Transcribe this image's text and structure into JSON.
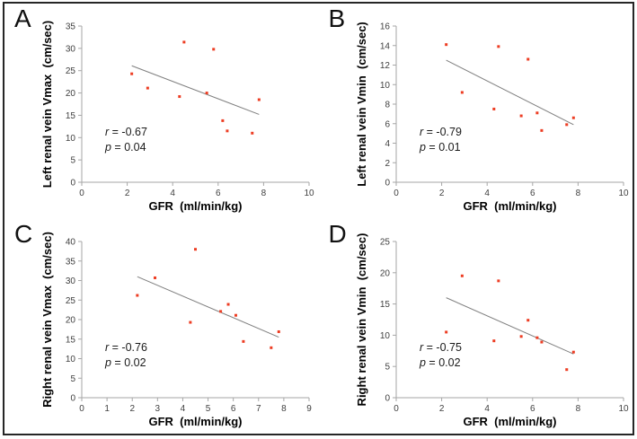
{
  "figure": {
    "background": "#ffffff",
    "border_color": "#262626",
    "colors": {
      "marker": "#ed3d23",
      "axis": "#a6a6a6",
      "trend": "#7f7f7f",
      "tick_text": "#404040",
      "title_text": "#000000"
    }
  },
  "chart_data": [
    {
      "type": "scatter",
      "panel": "A",
      "xlabel": "GFR  (ml/min/kg)",
      "ylabel": "Left renal vein Vmax  (cm/sec)",
      "xlim": [
        0,
        10
      ],
      "ylim": [
        0,
        35
      ],
      "xticks": [
        0,
        2,
        4,
        6,
        8,
        10
      ],
      "yticks": [
        0,
        5,
        10,
        15,
        20,
        25,
        30,
        35
      ],
      "points": [
        [
          2.2,
          24.3
        ],
        [
          2.9,
          21.1
        ],
        [
          4.3,
          19.2
        ],
        [
          4.5,
          31.4
        ],
        [
          5.5,
          20.0
        ],
        [
          5.8,
          29.8
        ],
        [
          6.2,
          13.8
        ],
        [
          6.4,
          11.5
        ],
        [
          7.5,
          11.0
        ],
        [
          7.8,
          18.5
        ]
      ],
      "trendline": {
        "x1": 2.2,
        "y1": 26.1,
        "x2": 7.8,
        "y2": 15.2
      },
      "stats": {
        "r": "-0.67",
        "p": "0.04"
      },
      "grid": false,
      "legend": false
    },
    {
      "type": "scatter",
      "panel": "B",
      "xlabel": "GFR  (ml/min/kg)",
      "ylabel": "Left renal vein Vmin  (cm/sec)",
      "xlim": [
        0,
        10
      ],
      "ylim": [
        0,
        16
      ],
      "xticks": [
        0,
        2,
        4,
        6,
        8,
        10
      ],
      "yticks": [
        0,
        2,
        4,
        6,
        8,
        10,
        12,
        14,
        16
      ],
      "points": [
        [
          2.2,
          14.1
        ],
        [
          2.9,
          9.2
        ],
        [
          4.3,
          7.5
        ],
        [
          4.5,
          13.9
        ],
        [
          5.5,
          6.8
        ],
        [
          5.8,
          12.6
        ],
        [
          6.2,
          7.1
        ],
        [
          6.4,
          5.3
        ],
        [
          7.5,
          5.9
        ],
        [
          7.8,
          6.6
        ]
      ],
      "trendline": {
        "x1": 2.2,
        "y1": 12.5,
        "x2": 7.8,
        "y2": 5.9
      },
      "stats": {
        "r": "-0.79",
        "p": "0.01"
      },
      "grid": false,
      "legend": false
    },
    {
      "type": "scatter",
      "panel": "C",
      "xlabel": "GFR  (ml/min/kg)",
      "ylabel": "Right renal vein Vmax  (cm/sec)",
      "xlim": [
        0,
        9
      ],
      "ylim": [
        0,
        40
      ],
      "xticks": [
        0,
        1,
        2,
        3,
        4,
        5,
        6,
        7,
        8,
        9
      ],
      "yticks": [
        0,
        5,
        10,
        15,
        20,
        25,
        30,
        35,
        40
      ],
      "points": [
        [
          2.2,
          26.2
        ],
        [
          2.9,
          30.7
        ],
        [
          4.3,
          19.3
        ],
        [
          4.5,
          38.0
        ],
        [
          5.5,
          22.1
        ],
        [
          5.8,
          23.9
        ],
        [
          6.1,
          21.1
        ],
        [
          6.4,
          14.4
        ],
        [
          7.5,
          12.8
        ],
        [
          7.8,
          16.9
        ]
      ],
      "trendline": {
        "x1": 2.2,
        "y1": 31.0,
        "x2": 7.8,
        "y2": 15.5
      },
      "stats": {
        "r": "-0.76",
        "p": "0.02"
      },
      "grid": false,
      "legend": false
    },
    {
      "type": "scatter",
      "panel": "D",
      "xlabel": "GFR  (ml/min/kg)",
      "ylabel": "Right renal vein Vmin  (cm/sec)",
      "xlim": [
        0,
        10
      ],
      "ylim": [
        0,
        25
      ],
      "xticks": [
        0,
        2,
        4,
        6,
        8,
        10
      ],
      "yticks": [
        0,
        5,
        10,
        15,
        20,
        25
      ],
      "points": [
        [
          2.2,
          10.5
        ],
        [
          2.9,
          19.5
        ],
        [
          4.3,
          9.1
        ],
        [
          4.5,
          18.7
        ],
        [
          5.5,
          9.8
        ],
        [
          5.8,
          12.4
        ],
        [
          6.2,
          9.6
        ],
        [
          6.4,
          8.9
        ],
        [
          7.5,
          4.5
        ],
        [
          7.8,
          7.3
        ]
      ],
      "trendline": {
        "x1": 2.2,
        "y1": 16.0,
        "x2": 7.8,
        "y2": 7.0
      },
      "stats": {
        "r": "-0.75",
        "p": "0.02"
      },
      "grid": false,
      "legend": false
    }
  ]
}
